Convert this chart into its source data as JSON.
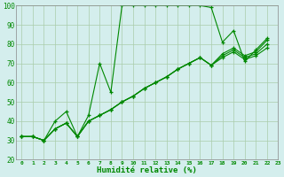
{
  "xlabel": "Humidité relative (%)",
  "bg_color": "#d4eeed",
  "grid_color": "#aaccaa",
  "line_color": "#008800",
  "xlim": [
    -0.5,
    23
  ],
  "ylim": [
    20,
    100
  ],
  "xticks": [
    0,
    1,
    2,
    3,
    4,
    5,
    6,
    7,
    8,
    9,
    10,
    11,
    12,
    13,
    14,
    15,
    16,
    17,
    18,
    19,
    20,
    21,
    22,
    23
  ],
  "yticks": [
    20,
    30,
    40,
    50,
    60,
    70,
    80,
    90,
    100
  ],
  "series": [
    {
      "x": [
        0,
        1,
        2,
        3,
        4,
        5,
        6,
        7,
        8,
        9,
        10,
        11,
        12,
        13,
        14,
        15,
        16,
        17,
        18,
        19,
        20,
        21,
        22
      ],
      "y": [
        32,
        32,
        30,
        40,
        45,
        32,
        43,
        70,
        55,
        100,
        100,
        100,
        100,
        100,
        100,
        100,
        100,
        99,
        81,
        87,
        71,
        77,
        83
      ]
    },
    {
      "x": [
        0,
        1,
        2,
        3,
        4,
        5,
        6,
        7,
        8,
        9,
        10,
        11,
        12,
        13,
        14,
        15,
        16,
        17,
        18,
        19,
        20,
        21,
        22
      ],
      "y": [
        32,
        32,
        30,
        36,
        39,
        32,
        40,
        43,
        46,
        50,
        53,
        57,
        60,
        63,
        67,
        70,
        73,
        69,
        73,
        76,
        72,
        74,
        78
      ]
    },
    {
      "x": [
        0,
        1,
        2,
        3,
        4,
        5,
        6,
        7,
        8,
        9,
        10,
        11,
        12,
        13,
        14,
        15,
        16,
        17,
        18,
        19,
        20,
        21,
        22
      ],
      "y": [
        32,
        32,
        30,
        36,
        39,
        32,
        40,
        43,
        46,
        50,
        53,
        57,
        60,
        63,
        67,
        70,
        73,
        69,
        74,
        77,
        73,
        75,
        80
      ]
    },
    {
      "x": [
        0,
        1,
        2,
        3,
        4,
        5,
        6,
        7,
        8,
        9,
        10,
        11,
        12,
        13,
        14,
        15,
        16,
        17,
        18,
        19,
        20,
        21,
        22
      ],
      "y": [
        32,
        32,
        30,
        36,
        39,
        32,
        40,
        43,
        46,
        50,
        53,
        57,
        60,
        63,
        67,
        70,
        73,
        69,
        75,
        78,
        74,
        76,
        82
      ]
    }
  ]
}
